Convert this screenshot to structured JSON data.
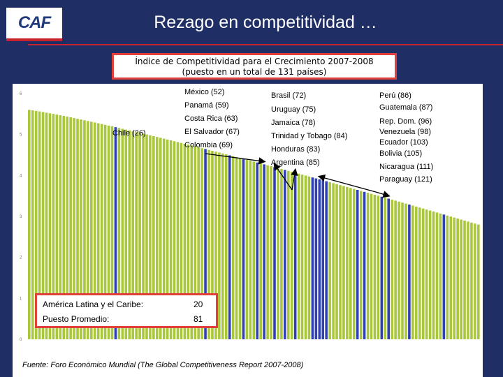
{
  "header": {
    "logo_text": "CAF",
    "title": "Rezago en competitividad …"
  },
  "subtitle_lines": [
    "Índice de Competitividad para el Crecimiento 2007-2008",
    "(puesto en un total de 131 países)"
  ],
  "colors": {
    "background": "#1f2f66",
    "other_countries": "#a9c73a",
    "latin_america": "#2f3fb4",
    "highlight_border": "#e1403a"
  },
  "label_groups": {
    "chile": [
      "Chile (26)"
    ],
    "central": [
      "México (52)",
      "Panamá (59)",
      "Costa Rica (63)",
      "El Salvador (67)",
      "Colombia (69)"
    ],
    "middle": [
      "Brasil (72)",
      "Uruguay (75)",
      "Jamaica (78)",
      "Trinidad y Tobago  (84)",
      "Honduras (83)",
      "Argentina (85)"
    ],
    "right": [
      "Perú (86)",
      "Guatemala (87)",
      "Rep. Dom. (96)",
      "Venezuela  (98)",
      "Ecuador (103)",
      "Bolivia  (105)",
      "Nicaragua (111)",
      "Paraguay (121)"
    ]
  },
  "stats": {
    "rows": [
      {
        "label": "América Latina y el Caribe:",
        "value": "20"
      },
      {
        "label": "Puesto Promedio:",
        "value": "81"
      }
    ]
  },
  "source": "Fuente: Foro Económico Mundial (The Global Competitiveness Report  2007-2008)",
  "chart_data": {
    "type": "bar",
    "title": "Índice de Competitividad para el Crecimiento 2007-2008",
    "subtitle": "(puesto en un total de 131 países)",
    "x_axis": "ranking position (1 to 131), bars ordered by rank",
    "ylim": [
      0,
      6
    ],
    "yticks": [
      0,
      1,
      2,
      3,
      4,
      5,
      6
    ],
    "values_start": 5.6,
    "values_end": 2.8,
    "total_bars": 131,
    "series": [
      {
        "name": "América Latina y el Caribe",
        "color": "#2f3fb4",
        "ranks": [
          26,
          52,
          59,
          63,
          67,
          69,
          72,
          75,
          78,
          83,
          84,
          85,
          86,
          87,
          96,
          98,
          103,
          105,
          111,
          121
        ]
      }
    ],
    "legend": "none"
  }
}
